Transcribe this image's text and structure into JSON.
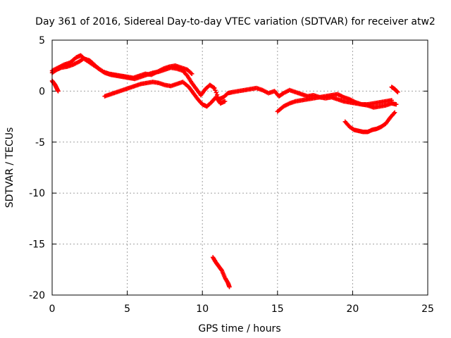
{
  "chart_data": {
    "type": "scatter",
    "title": "Day 361 of 2016, Sidereal Day-to-day VTEC variation (SDTVAR) for receiver atw2",
    "xlabel": "GPS time / hours",
    "ylabel": "SDTVAR / TECUs",
    "xlim": [
      0,
      25
    ],
    "ylim": [
      -20,
      5
    ],
    "xticks": [
      0,
      5,
      10,
      15,
      20,
      25
    ],
    "yticks": [
      5,
      0,
      -5,
      -10,
      -15,
      -20
    ],
    "xtick_labels": [
      "0",
      "5",
      "10",
      "15",
      "20",
      "25"
    ],
    "ytick_labels": [
      "5",
      "0",
      "-5",
      "-10",
      "-15",
      "-20"
    ],
    "grid": true,
    "marker": "+",
    "color": "#ff0000",
    "series": [
      {
        "name": "main-track",
        "x": [
          0.0,
          0.3,
          0.6,
          1.0,
          1.4,
          1.8,
          2.1,
          2.5,
          2.8,
          3.1,
          3.5,
          3.9,
          4.3,
          4.7,
          5.1,
          5.5,
          5.9,
          6.3,
          6.7,
          7.1,
          7.5,
          7.9,
          8.3,
          8.7,
          9.0,
          9.3,
          9.6,
          9.9,
          10.2,
          10.5,
          10.8,
          11.1,
          11.4,
          11.7,
          12.0,
          12.4,
          12.8,
          13.2,
          13.6,
          14.0,
          14.4,
          14.8,
          15.1,
          15.4,
          15.8,
          16.2,
          16.6,
          17.0,
          17.4,
          17.8,
          18.2,
          18.6,
          19.0,
          19.4,
          19.8,
          20.2,
          20.6,
          21.0,
          21.4,
          21.8,
          22.2,
          22.6,
          22.9
        ],
        "y": [
          1.8,
          2.1,
          2.3,
          2.4,
          2.6,
          2.9,
          3.2,
          3.0,
          2.6,
          2.2,
          1.8,
          1.6,
          1.5,
          1.4,
          1.3,
          1.2,
          1.4,
          1.6,
          1.8,
          1.9,
          2.1,
          2.3,
          2.2,
          2.0,
          1.5,
          0.8,
          0.2,
          -0.4,
          0.2,
          0.6,
          0.3,
          -0.8,
          -0.6,
          -0.2,
          -0.1,
          0.0,
          0.1,
          0.2,
          0.3,
          0.1,
          -0.2,
          0.0,
          -0.5,
          -0.2,
          0.1,
          -0.1,
          -0.3,
          -0.5,
          -0.4,
          -0.6,
          -0.5,
          -0.4,
          -0.3,
          -0.6,
          -0.8,
          -1.1,
          -1.3,
          -1.4,
          -1.6,
          -1.5,
          -1.4,
          -1.2,
          -1.3
        ]
      },
      {
        "name": "upper-track",
        "x": [
          0.0,
          0.4,
          0.8,
          1.2,
          1.6,
          1.9,
          2.2,
          2.6,
          3.0,
          3.4,
          3.8,
          4.2,
          4.6,
          5.0,
          5.4,
          5.8,
          6.2,
          6.6,
          7.0,
          7.4,
          7.8,
          8.2,
          8.6,
          9.0,
          9.3
        ],
        "y": [
          2.0,
          2.3,
          2.6,
          2.8,
          3.3,
          3.5,
          3.1,
          2.7,
          2.3,
          1.9,
          1.7,
          1.6,
          1.5,
          1.4,
          1.3,
          1.5,
          1.7,
          1.6,
          1.9,
          2.2,
          2.4,
          2.5,
          2.3,
          2.1,
          1.7
        ]
      },
      {
        "name": "lower-track",
        "x": [
          3.5,
          3.9,
          4.3,
          4.7,
          5.1,
          5.5,
          5.9,
          6.3,
          6.7,
          7.1,
          7.5,
          7.9,
          8.3,
          8.7,
          9.1,
          9.4,
          9.7,
          10.0,
          10.3,
          10.6,
          10.9,
          11.2,
          11.5
        ],
        "y": [
          -0.5,
          -0.3,
          -0.1,
          0.1,
          0.3,
          0.5,
          0.7,
          0.8,
          0.9,
          0.8,
          0.6,
          0.5,
          0.7,
          0.9,
          0.4,
          -0.2,
          -0.8,
          -1.3,
          -1.5,
          -1.1,
          -0.6,
          -1.2,
          -1.0
        ]
      },
      {
        "name": "early-segment",
        "x": [
          0.0,
          0.1,
          0.2,
          0.3,
          0.4
        ],
        "y": [
          1.0,
          0.8,
          0.6,
          0.3,
          0.0
        ]
      },
      {
        "name": "late-lower-track",
        "x": [
          15.0,
          15.4,
          15.8,
          16.2,
          16.6,
          17.0,
          17.4,
          17.8,
          18.2,
          18.6,
          19.0,
          19.4,
          19.8,
          20.2,
          20.6,
          21.0,
          21.4,
          21.8,
          22.2,
          22.6
        ],
        "y": [
          -2.0,
          -1.5,
          -1.2,
          -1.0,
          -0.9,
          -0.8,
          -0.7,
          -0.6,
          -0.7,
          -0.6,
          -0.8,
          -1.0,
          -1.1,
          -1.2,
          -1.3,
          -1.3,
          -1.2,
          -1.1,
          -1.0,
          -0.9
        ]
      },
      {
        "name": "bottom-right-dip",
        "x": [
          19.5,
          19.8,
          20.1,
          20.4,
          20.7,
          21.0,
          21.3,
          21.6,
          21.9,
          22.2,
          22.5,
          22.8
        ],
        "y": [
          -3.0,
          -3.5,
          -3.8,
          -3.9,
          -4.0,
          -4.0,
          -3.8,
          -3.7,
          -3.5,
          -3.2,
          -2.6,
          -2.1
        ]
      },
      {
        "name": "end-segment",
        "x": [
          22.6,
          22.8,
          23.0
        ],
        "y": [
          0.4,
          0.2,
          -0.1
        ]
      },
      {
        "name": "outlier-dip",
        "x": [
          10.7,
          10.9,
          11.1,
          11.3,
          11.5,
          11.7,
          11.8
        ],
        "y": [
          -16.3,
          -16.8,
          -17.2,
          -17.6,
          -18.3,
          -18.8,
          -19.2
        ]
      }
    ]
  }
}
